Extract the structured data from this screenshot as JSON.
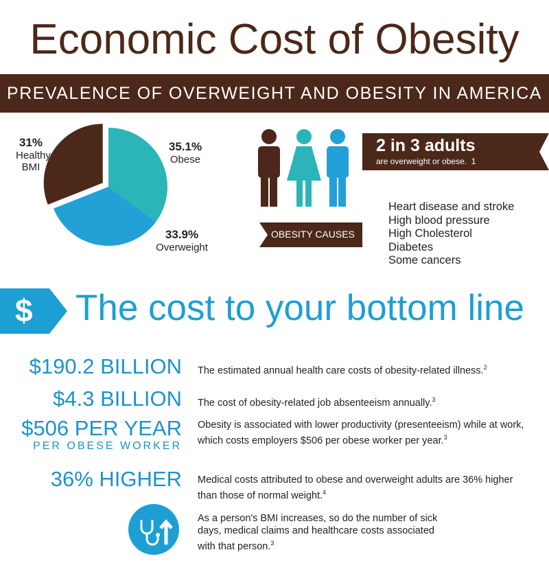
{
  "title": "Economic Cost of Obesity",
  "banner": "PREVALENCE OF OVERWEIGHT AND OBESITY IN AMERICA",
  "chart_data": {
    "type": "pie",
    "categories": [
      "Obese",
      "Overweight",
      "Healthy BMI"
    ],
    "values": [
      35.1,
      33.9,
      31
    ],
    "value_labels": [
      "35.1%",
      "33.9%",
      "31%"
    ],
    "colors": [
      "#2bb5b8",
      "#23a0d6",
      "#4b2819"
    ]
  },
  "adults": {
    "headline": "2 in 3 adults",
    "subline": "are overweight or obese.",
    "note": "1"
  },
  "causes": {
    "label": "OBESITY CAUSES",
    "items": [
      "Heart disease and stroke",
      "High blood pressure",
      "High Cholesterol",
      "Diabetes",
      "Some cancers"
    ]
  },
  "cost": {
    "icon": "$",
    "heading": "The cost to your bottom line",
    "rows": [
      {
        "figure": "$190.2 BILLION",
        "text": "The estimated annual health care costs of obesity-related illness.",
        "sup": "2"
      },
      {
        "figure": "$4.3 BILLION",
        "text": "The cost of obesity-related job absenteeism annually.",
        "sup": "3"
      },
      {
        "figure": "$506 PER YEAR",
        "sub": "PER OBESE WORKER",
        "text": "Obesity is associated with lower productivity (presenteeism) while at work, which costs employers $506 per obese worker per year.",
        "sup": "3"
      },
      {
        "figure": "36% HIGHER",
        "text": "Medical costs attributed to obese and overweight adults are 36% higher than those of normal weight.",
        "sup": "4"
      },
      {
        "text": "As a person's BMI increases, so do the number of sick days, medical claims and healthcare costs associated with that person.",
        "sup": "3"
      }
    ]
  }
}
